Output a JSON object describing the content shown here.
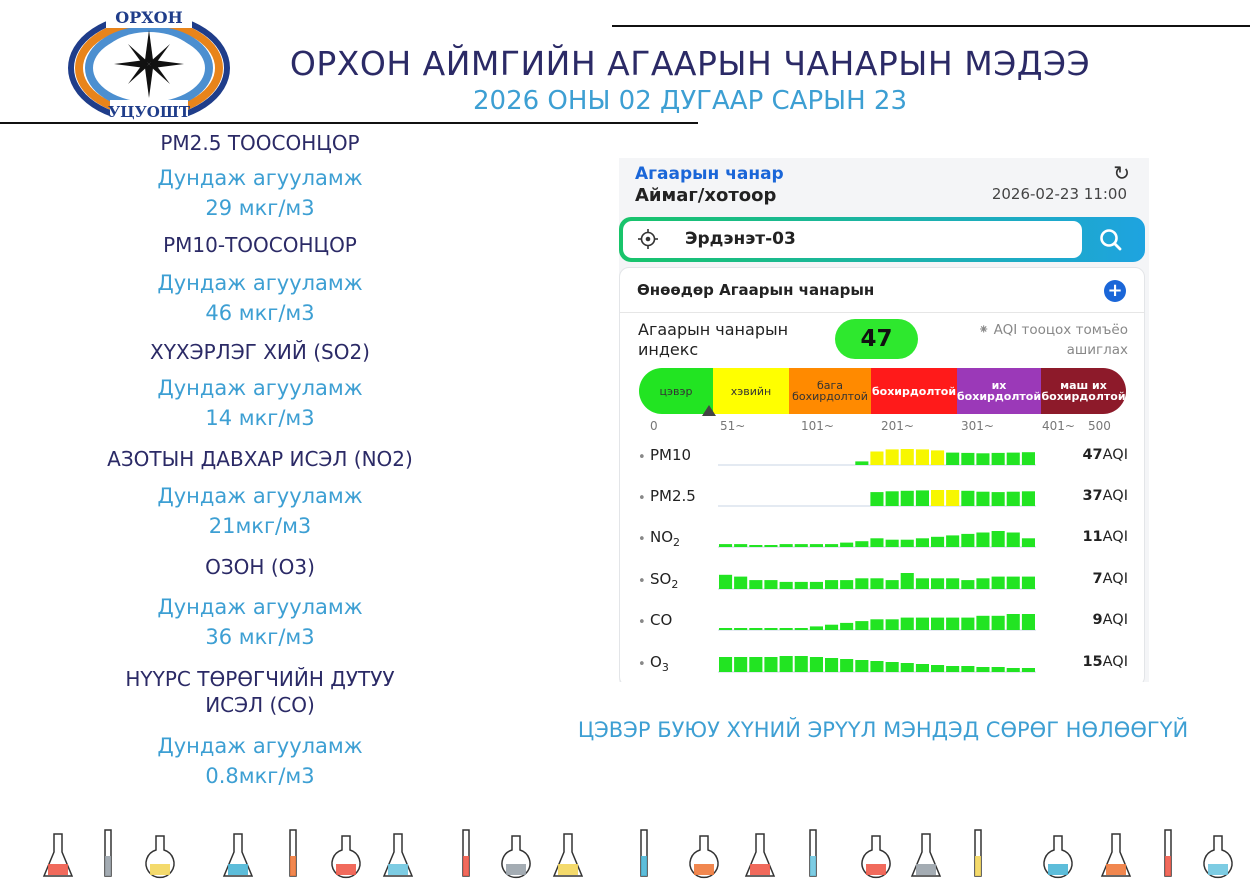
{
  "header": {
    "logo": {
      "top_text": "ОРХОН",
      "bottom_text": "УЦУОШТ"
    },
    "title": "ОРХОН АЙМГИЙН АГААРЫН ЧАНАРЫН МЭДЭЭ",
    "date": "2026 ОНЫ 02 ДУГААР САРЫН 23"
  },
  "pollutants": [
    {
      "name": "PM2.5 ТООСОНЦОР",
      "avg_label": "Дундаж агууламж",
      "value": "29 мкг/м3"
    },
    {
      "name": "PM10-ТООСОНЦОР",
      "avg_label": "Дундаж агууламж",
      "value": "46 мкг/м3"
    },
    {
      "name": "ХҮХЭРЛЭГ ХИЙ (SO2)",
      "avg_label": "Дундаж агууламж",
      "value": "14 мкг/м3"
    },
    {
      "name": "АЗОТЫН ДАВХАР ИСЭЛ (NO2)",
      "avg_label": "Дундаж агууламж",
      "value": "21мкг/м3"
    },
    {
      "name": "ОЗОН (О3)",
      "avg_label": "Дундаж агууламж",
      "value": "36 мкг/м3"
    },
    {
      "name_line1": "НҮҮРС ТӨРӨГЧИЙН ДУТУУ",
      "name_line2": "ИСЭЛ (CO)",
      "avg_label": "Дундаж агууламж",
      "value": "0.8мкг/м3"
    }
  ],
  "app": {
    "title": "Агаарын чанар",
    "subtitle": "Аймаг/хотоор",
    "refresh_icon": "refresh-icon",
    "timestamp": "2026-02-23 11:00",
    "search": {
      "value": "Эрдэнэт-03",
      "locate_icon": "crosshair-icon",
      "search_icon": "search-icon"
    },
    "card_title": "Өнөөдөр Агаарын чанарын",
    "aqi_label": "Агаарын чанарын индекс",
    "aqi_value": "47",
    "aqi_note": "⁕ AQI тооцох томъёо ашиглах",
    "scale": [
      {
        "label": "цэвэр",
        "color": "#22e422"
      },
      {
        "label": "хэвийн",
        "color": "#ffff00"
      },
      {
        "label": "бага бохирдолтой",
        "color": "#ff8a00"
      },
      {
        "label": "бохирдолтой",
        "color": "#ff1a1a"
      },
      {
        "label": "их бохирдолтой",
        "color": "#9b39b8"
      },
      {
        "label": "маш их бохирдолтой",
        "color": "#8d1a2a"
      }
    ],
    "scale_ticks": [
      "0",
      "51~",
      "101~",
      "201~",
      "301~",
      "401~",
      "500"
    ],
    "rows": [
      {
        "name": "PM10",
        "value": "47",
        "unit": "AQI",
        "bars": [
          0,
          0,
          0,
          0,
          0,
          0,
          0,
          0,
          0,
          10,
          38,
          44,
          45,
          44,
          41,
          35,
          34,
          33,
          34,
          35,
          36
        ]
      },
      {
        "name": "PM2.5",
        "value": "37",
        "unit": "AQI",
        "bars": [
          0,
          0,
          0,
          0,
          0,
          0,
          0,
          0,
          0,
          0,
          33,
          35,
          36,
          37,
          38,
          38,
          36,
          34,
          33,
          34,
          35
        ]
      },
      {
        "name": "NO",
        "sub": "2",
        "value": "11",
        "unit": "AQI",
        "bars": [
          2,
          2,
          1,
          1,
          2,
          2,
          2,
          2,
          3,
          4,
          6,
          5,
          5,
          6,
          7,
          8,
          9,
          10,
          11,
          10,
          6
        ]
      },
      {
        "name": "SO",
        "sub": "2",
        "value": "7",
        "unit": "AQI",
        "bars": [
          8,
          7,
          5,
          5,
          4,
          4,
          4,
          5,
          5,
          6,
          6,
          5,
          9,
          6,
          6,
          6,
          5,
          6,
          7,
          7,
          7
        ]
      },
      {
        "name": "CO",
        "value": "9",
        "unit": "AQI",
        "bars": [
          1,
          1,
          1,
          1,
          1,
          1,
          2,
          3,
          4,
          5,
          6,
          6,
          7,
          7,
          7,
          7,
          7,
          8,
          8,
          9,
          9
        ]
      },
      {
        "name": "O",
        "sub": "3",
        "value": "15",
        "unit": "AQI",
        "bars": [
          15,
          15,
          15,
          15,
          16,
          16,
          15,
          14,
          13,
          12,
          11,
          10,
          9,
          8,
          7,
          6,
          6,
          5,
          5,
          4,
          4
        ]
      }
    ]
  },
  "status_text": "ЦЭВЭР БУЮУ ХҮНИЙ ЭРҮҮЛ МЭНДЭД СӨРӨГ НӨЛӨӨГҮЙ",
  "colors": {
    "navy": "#2b2a66",
    "blue": "#3d9fd3",
    "aqi_green": "#2ee82e",
    "bar_green": "#22e422",
    "bar_yellow": "#f7f700"
  },
  "footer_icons": [
    "lab-glassware-icons"
  ]
}
